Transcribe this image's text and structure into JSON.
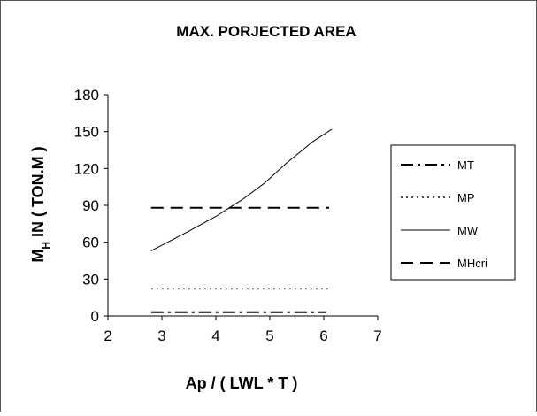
{
  "chart_data": {
    "type": "line",
    "title": "MAX. PORJECTED AREA",
    "xlabel": "Ap / ( LWL * T )",
    "ylabel_main": "M",
    "ylabel_sub": "H",
    "ylabel_rest": " IN ( TON.M )",
    "xlim": [
      2,
      7
    ],
    "ylim": [
      0,
      180
    ],
    "x_ticks": [
      2,
      3,
      4,
      5,
      6,
      7
    ],
    "y_ticks": [
      0,
      30,
      60,
      90,
      120,
      150,
      180
    ],
    "grid": false,
    "legend_position": "right",
    "series": [
      {
        "name": "MT",
        "style": "dashdot",
        "color": "#000000",
        "x": [
          2.8,
          6.05
        ],
        "y": [
          3,
          3
        ]
      },
      {
        "name": "MP",
        "style": "dotted",
        "color": "#000000",
        "x": [
          2.8,
          6.1
        ],
        "y": [
          22,
          22
        ]
      },
      {
        "name": "MW",
        "style": "solid",
        "color": "#000000",
        "x": [
          2.8,
          3.5,
          4.0,
          4.5,
          4.9,
          5.3,
          5.8,
          6.15
        ],
        "y": [
          53,
          69,
          81,
          95,
          108,
          124,
          142,
          152
        ]
      },
      {
        "name": "MHcri",
        "style": "dashed",
        "color": "#000000",
        "x": [
          2.8,
          6.1
        ],
        "y": [
          88,
          88
        ]
      }
    ]
  }
}
